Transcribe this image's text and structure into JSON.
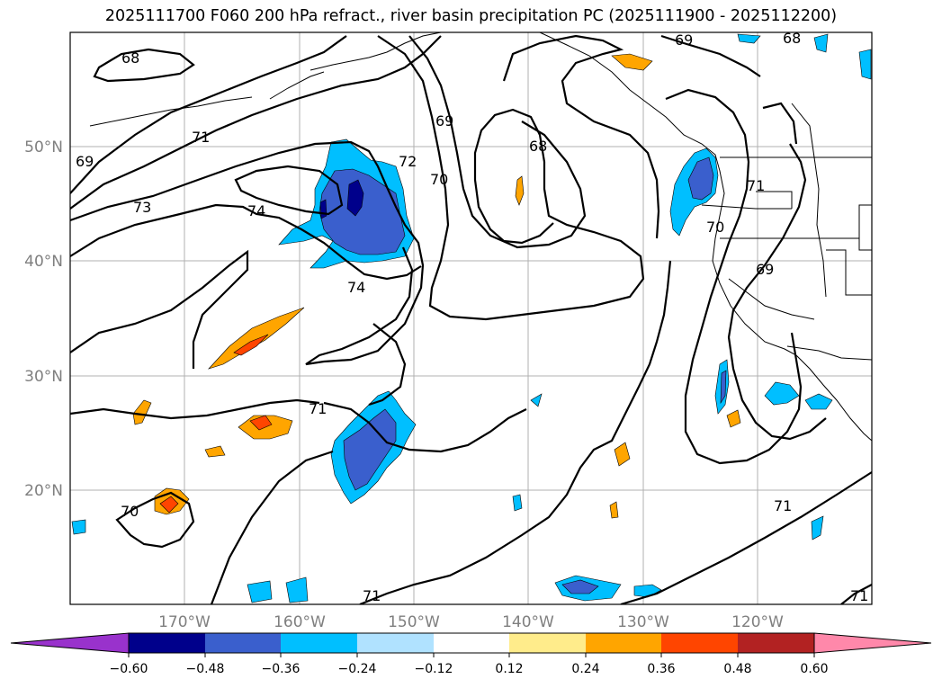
{
  "title": "2025111700 F060 200 hPa refract., river basin precipitation PC (2025111900 - 2025112200)",
  "map": {
    "lon_ticks": [
      "170°W",
      "160°W",
      "150°W",
      "140°W",
      "130°W",
      "120°W"
    ],
    "lat_ticks": [
      "50°N",
      "40°N",
      "30°N",
      "20°N"
    ],
    "contour_labels": [
      "68",
      "69",
      "71",
      "73",
      "74",
      "72",
      "70",
      "69",
      "68",
      "68",
      "69",
      "70",
      "71",
      "69",
      "74",
      "71",
      "70",
      "71",
      "71",
      "71"
    ]
  },
  "colorbar": {
    "ticks": [
      "−0.60",
      "−0.48",
      "−0.36",
      "−0.24",
      "−0.12",
      "0.12",
      "0.24",
      "0.36",
      "0.48",
      "0.60"
    ],
    "colors": [
      "#9932cc",
      "#00008b",
      "#3a5fcd",
      "#00bfff",
      "#b0e2ff",
      "#ffffff",
      "#ffec8b",
      "#ffa500",
      "#ff4500",
      "#b22222",
      "#ff88aa"
    ]
  },
  "colors": {
    "grid": "#b0b0b0",
    "tick_text": "#7f7f7f"
  }
}
